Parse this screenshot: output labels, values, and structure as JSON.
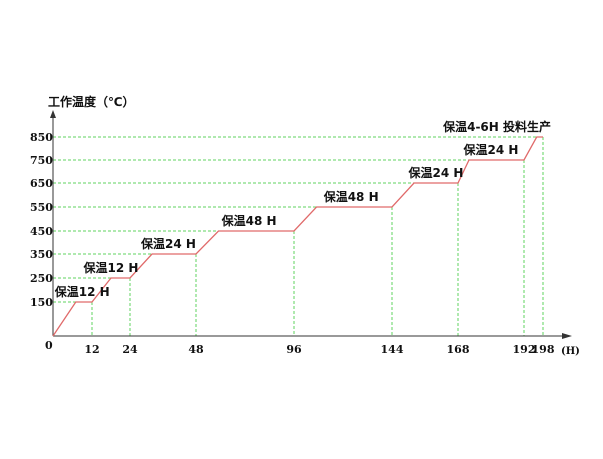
{
  "chart_data": {
    "type": "line",
    "ylabel": "工作温度（℃）",
    "xlabel": "(H)",
    "x_ticks": [
      0,
      12,
      24,
      48,
      96,
      144,
      168,
      192,
      198
    ],
    "x_tick_labels": [
      "0",
      "12",
      "24",
      "48",
      "96",
      "144",
      "168",
      "192",
      "198"
    ],
    "y_ticks": [
      150,
      250,
      350,
      450,
      550,
      650,
      750,
      850
    ],
    "y_tick_labels": [
      "150",
      "250",
      "350",
      "450",
      "550",
      "650",
      "750",
      "850"
    ],
    "xlim": [
      0,
      198
    ],
    "ylim": [
      0,
      850
    ],
    "grid": "dashed reference lines at tick values",
    "series": [
      {
        "x": [
          0,
          7,
          12,
          18,
          24,
          32,
          48,
          59,
          96,
          107,
          144,
          152,
          168,
          172,
          192,
          196,
          198
        ],
        "y": [
          0,
          150,
          150,
          250,
          250,
          350,
          350,
          450,
          450,
          550,
          550,
          650,
          650,
          750,
          750,
          850,
          850
        ],
        "color": "#e06a6a"
      }
    ],
    "annotations": [
      {
        "text": "保温12 H",
        "x": 9,
        "y": 150
      },
      {
        "text": "保温12 H",
        "x": 18,
        "y": 250
      },
      {
        "text": "保温24 H",
        "x": 38,
        "y": 350
      },
      {
        "text": "保温48 H",
        "x": 74,
        "y": 450
      },
      {
        "text": "保温48 H",
        "x": 124,
        "y": 550
      },
      {
        "text": "保温24 H",
        "x": 160,
        "y": 650
      },
      {
        "text": "保温24 H",
        "x": 180,
        "y": 750
      },
      {
        "text": "保温4-6H  投料生产",
        "x": 196,
        "y": 850
      }
    ],
    "colors": {
      "line": "#e06a6a",
      "grid": "#5fd35f",
      "axis": "#333333"
    }
  }
}
